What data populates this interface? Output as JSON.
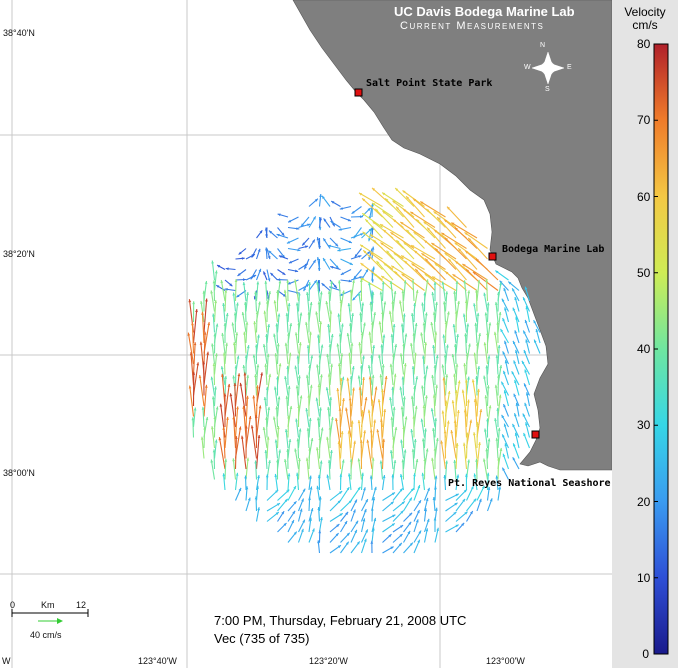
{
  "header": {
    "title": "UC Davis Bodega Marine Lab",
    "subtitle": "Current Measurements"
  },
  "compass": {
    "n": "N",
    "s": "S",
    "e": "E",
    "w": "W"
  },
  "lat_labels": [
    "38°40'N",
    "38°20'N",
    "38°00'N"
  ],
  "lon_labels": [
    "123°40'W",
    "123°20'W",
    "123°00'W"
  ],
  "left_edge_mark": "W",
  "sites": [
    {
      "name": "Salt Point State Park"
    },
    {
      "name": "Bodega Marine Lab"
    },
    {
      "name": "Pt. Reyes National Seashore"
    }
  ],
  "scale": {
    "km_start": "0",
    "km_label": "Km",
    "km_end": "12",
    "vector_label": "40 cm/s",
    "vector_color": "#33cc33"
  },
  "timestamp": {
    "line1": "7:00 PM, Thursday, February 21, 2008  UTC",
    "line2": "Vec (735 of 735)"
  },
  "colorbar": {
    "title1": "Velocity",
    "title2": "cm/s",
    "min": 0,
    "max": 80,
    "ticks": [
      "80",
      "70",
      "60",
      "50",
      "40",
      "30",
      "20",
      "10",
      "0"
    ]
  },
  "colors": {
    "land": "#7f7f7f",
    "grid": "#c8c8c8",
    "site_marker": "#e01010"
  }
}
